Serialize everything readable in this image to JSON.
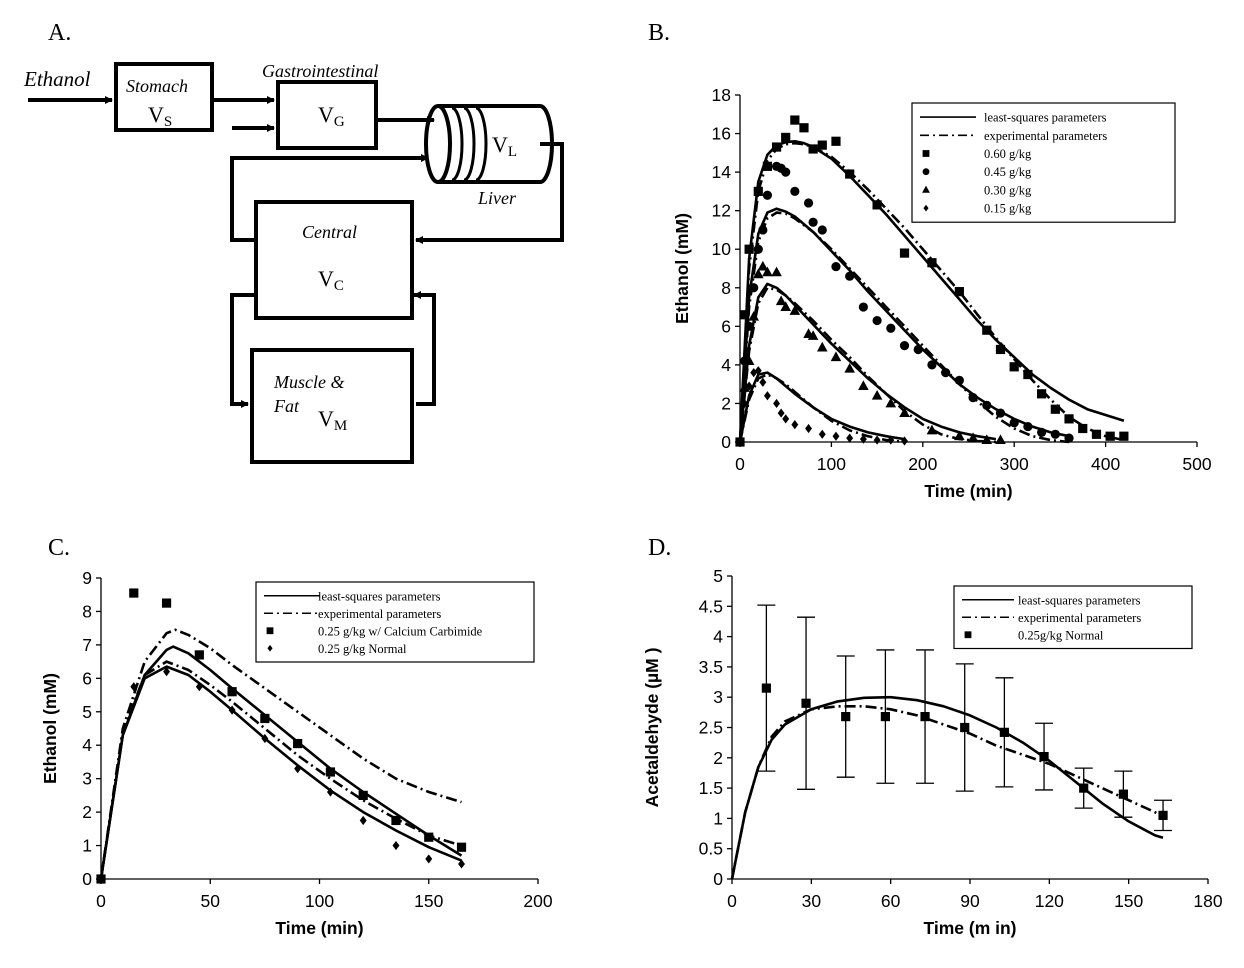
{
  "panel_labels": {
    "a": "A.",
    "b": "B.",
    "c": "C.",
    "d": "D."
  },
  "diagram": {
    "input": "Ethanol",
    "stomach": {
      "title": "Stomach",
      "vol": "V",
      "sub": "S"
    },
    "gastro": {
      "title": "Gastrointestinal",
      "vol": "V",
      "sub": "G"
    },
    "liver": {
      "title": "Liver",
      "vol": "V",
      "sub": "L"
    },
    "central": {
      "title": "Central",
      "vol": "V",
      "sub": "C"
    },
    "muscle": {
      "title_line1": "Muscle &",
      "title_line2": "Fat",
      "vol": "V",
      "sub": "M"
    }
  },
  "chart_data": [
    {
      "id": "B",
      "type": "line",
      "xlabel": "Time (min)",
      "ylabel": "Ethanol (mM)",
      "xlim": [
        0,
        500
      ],
      "ylim": [
        0,
        18
      ],
      "xticks": [
        0,
        100,
        200,
        300,
        400,
        500
      ],
      "yticks": [
        0,
        2,
        4,
        6,
        8,
        10,
        12,
        14,
        16,
        18
      ],
      "legend_position": "top-right",
      "legend": [
        {
          "label": "least-squares parameters",
          "kind": "solid"
        },
        {
          "label": "experimental parameters",
          "kind": "dashed"
        },
        {
          "label": "0.60 g/kg",
          "kind": "square"
        },
        {
          "label": "0.45 g/kg",
          "kind": "circle"
        },
        {
          "label": "0.30 g/kg",
          "kind": "triangle"
        },
        {
          "label": "0.15 g/kg",
          "kind": "diamond"
        }
      ],
      "lines": [
        {
          "style": "solid",
          "x": [
            0,
            10,
            20,
            30,
            40,
            50,
            60,
            70,
            80,
            90,
            100,
            120,
            140,
            160,
            180,
            200,
            220,
            240,
            260,
            280,
            300,
            320,
            340,
            360,
            380,
            400,
            420
          ],
          "y": [
            0,
            9.5,
            13.5,
            14.9,
            15.4,
            15.55,
            15.6,
            15.5,
            15.3,
            15.0,
            14.7,
            13.8,
            12.8,
            11.8,
            10.7,
            9.6,
            8.5,
            7.4,
            6.3,
            5.3,
            4.4,
            3.5,
            2.8,
            2.2,
            1.7,
            1.4,
            1.1
          ]
        },
        {
          "style": "dashed",
          "x": [
            0,
            10,
            20,
            30,
            40,
            50,
            60,
            70,
            80,
            90,
            100,
            120,
            140,
            160,
            180,
            200,
            220,
            240,
            260,
            280,
            300,
            320,
            340,
            360,
            380,
            400,
            420
          ],
          "y": [
            0,
            9.0,
            13.0,
            14.6,
            15.2,
            15.45,
            15.5,
            15.45,
            15.3,
            15.05,
            14.8,
            14.0,
            13.1,
            12.1,
            11.1,
            10.0,
            8.9,
            7.8,
            6.6,
            5.4,
            4.3,
            3.2,
            2.2,
            1.3,
            0.7,
            0.3,
            0.1
          ]
        },
        {
          "style": "solid",
          "x": [
            0,
            10,
            20,
            30,
            40,
            50,
            60,
            80,
            100,
            120,
            140,
            160,
            180,
            200,
            220,
            240,
            260,
            280,
            300,
            320,
            340,
            360
          ],
          "y": [
            0,
            7.5,
            10.8,
            11.9,
            12.1,
            11.95,
            11.7,
            10.9,
            9.9,
            8.9,
            7.8,
            6.8,
            5.8,
            4.8,
            3.9,
            3.0,
            2.3,
            1.7,
            1.2,
            0.8,
            0.5,
            0.3
          ]
        },
        {
          "style": "dashed",
          "x": [
            0,
            10,
            20,
            30,
            40,
            50,
            60,
            80,
            100,
            120,
            140,
            160,
            180,
            200,
            220,
            240,
            260,
            280,
            300,
            320,
            340,
            360
          ],
          "y": [
            0,
            7.0,
            10.4,
            11.6,
            11.9,
            11.85,
            11.6,
            10.9,
            10.0,
            9.0,
            8.0,
            7.0,
            6.0,
            5.0,
            4.0,
            3.0,
            2.1,
            1.3,
            0.7,
            0.3,
            0.1,
            0.0
          ]
        },
        {
          "style": "solid",
          "x": [
            0,
            10,
            20,
            30,
            40,
            50,
            60,
            80,
            100,
            120,
            140,
            160,
            180,
            200,
            220,
            240,
            260,
            280
          ],
          "y": [
            0,
            5.0,
            7.5,
            8.2,
            8.0,
            7.6,
            7.1,
            6.1,
            5.1,
            4.2,
            3.3,
            2.5,
            1.8,
            1.2,
            0.8,
            0.5,
            0.3,
            0.15
          ]
        },
        {
          "style": "dashed",
          "x": [
            0,
            10,
            20,
            30,
            40,
            50,
            60,
            80,
            100,
            120,
            140,
            160,
            180,
            200,
            220,
            240,
            260,
            280
          ],
          "y": [
            0,
            4.7,
            7.2,
            8.0,
            7.9,
            7.6,
            7.2,
            6.3,
            5.3,
            4.4,
            3.4,
            2.5,
            1.6,
            0.9,
            0.4,
            0.15,
            0.05,
            0.0
          ]
        },
        {
          "style": "solid",
          "x": [
            0,
            10,
            20,
            30,
            40,
            50,
            60,
            80,
            100,
            120,
            140,
            160,
            180
          ],
          "y": [
            0,
            2.4,
            3.5,
            3.6,
            3.3,
            2.9,
            2.5,
            1.8,
            1.2,
            0.8,
            0.5,
            0.3,
            0.15
          ]
        },
        {
          "style": "dashed",
          "x": [
            0,
            10,
            20,
            30,
            40,
            50,
            60,
            80,
            100,
            120,
            140,
            160,
            180
          ],
          "y": [
            0,
            2.2,
            3.3,
            3.5,
            3.3,
            3.0,
            2.6,
            1.8,
            1.1,
            0.6,
            0.3,
            0.1,
            0.0
          ]
        }
      ],
      "points": [
        {
          "marker": "square",
          "x": [
            0,
            5,
            10,
            20,
            30,
            40,
            50,
            60,
            70,
            80,
            90,
            105,
            120,
            150,
            180,
            210,
            240,
            270,
            285,
            300,
            315,
            330,
            345,
            360,
            375,
            390,
            405,
            420
          ],
          "y": [
            0,
            6.6,
            10,
            13,
            14.3,
            15.3,
            15.8,
            16.7,
            16.3,
            15.2,
            15.4,
            15.6,
            13.9,
            12.3,
            9.8,
            9.3,
            7.8,
            5.8,
            4.8,
            3.9,
            3.5,
            2.5,
            1.7,
            1.2,
            0.7,
            0.4,
            0.3,
            0.3
          ]
        },
        {
          "marker": "circle",
          "x": [
            5,
            10,
            15,
            20,
            25,
            30,
            40,
            45,
            50,
            60,
            75,
            80,
            90,
            105,
            120,
            135,
            150,
            165,
            180,
            195,
            210,
            225,
            240,
            255,
            270,
            285,
            300,
            315,
            330,
            345,
            360
          ],
          "y": [
            4.2,
            6.0,
            8.0,
            10.0,
            11.0,
            12.8,
            14.3,
            14.2,
            14.0,
            13.0,
            12.4,
            11.4,
            11.0,
            9.1,
            8.6,
            7.0,
            6.3,
            5.9,
            5.0,
            4.8,
            4.0,
            3.6,
            3.2,
            2.3,
            1.9,
            1.5,
            1.0,
            0.8,
            0.5,
            0.4,
            0.2
          ]
        },
        {
          "marker": "triangle",
          "x": [
            5,
            10,
            15,
            20,
            25,
            30,
            40,
            45,
            50,
            60,
            75,
            80,
            90,
            105,
            120,
            135,
            150,
            165,
            180,
            210,
            240,
            255,
            270,
            285
          ],
          "y": [
            2.8,
            4.2,
            6.5,
            8.7,
            9.1,
            8.8,
            8.8,
            7.3,
            7.0,
            6.8,
            5.6,
            5.5,
            4.9,
            4.4,
            3.8,
            2.9,
            2.4,
            2.0,
            1.5,
            0.6,
            0.3,
            0.2,
            0.1,
            0.1
          ]
        },
        {
          "marker": "diamond",
          "x": [
            5,
            10,
            15,
            20,
            25,
            30,
            40,
            45,
            50,
            60,
            75,
            90,
            105,
            120,
            135,
            150,
            165,
            180
          ],
          "y": [
            2.0,
            2.9,
            3.6,
            3.7,
            3.1,
            2.4,
            2.0,
            1.5,
            1.2,
            0.9,
            0.7,
            0.4,
            0.3,
            0.2,
            0.15,
            0.1,
            0.1,
            0.05
          ]
        }
      ]
    },
    {
      "id": "C",
      "type": "line",
      "xlabel": "Time (min)",
      "ylabel": "Ethanol (mM)",
      "xlim": [
        0,
        200
      ],
      "ylim": [
        0,
        9
      ],
      "xticks": [
        0,
        50,
        100,
        150,
        200
      ],
      "yticks": [
        0,
        1,
        2,
        3,
        4,
        5,
        6,
        7,
        8,
        9
      ],
      "legend_position": "top-right",
      "legend": [
        {
          "label": "least-squares parameters",
          "kind": "solid"
        },
        {
          "label": "experimental parameters",
          "kind": "dashed"
        },
        {
          "label": "0.25 g/kg w/ Calcium Carbimide",
          "kind": "square"
        },
        {
          "label": "0.25 g/kg Normal",
          "kind": "diamond"
        }
      ],
      "lines": [
        {
          "style": "solid",
          "x": [
            0,
            10,
            20,
            30,
            33,
            40,
            50,
            60,
            75,
            90,
            105,
            120,
            135,
            150,
            165
          ],
          "y": [
            0,
            4.3,
            6.1,
            6.85,
            6.95,
            6.75,
            6.25,
            5.7,
            4.9,
            4.1,
            3.3,
            2.6,
            1.95,
            1.3,
            0.7
          ]
        },
        {
          "style": "dashed",
          "x": [
            0,
            10,
            20,
            30,
            34,
            40,
            50,
            60,
            75,
            90,
            105,
            120,
            135,
            150,
            165
          ],
          "y": [
            0,
            4.5,
            6.5,
            7.35,
            7.45,
            7.3,
            6.9,
            6.4,
            5.7,
            5.0,
            4.3,
            3.6,
            3.0,
            2.6,
            2.3
          ]
        },
        {
          "style": "solid",
          "x": [
            0,
            10,
            20,
            30,
            40,
            50,
            60,
            75,
            90,
            105,
            120,
            135,
            150,
            165
          ],
          "y": [
            0,
            4.3,
            6.0,
            6.35,
            6.1,
            5.6,
            5.05,
            4.2,
            3.4,
            2.65,
            2.0,
            1.45,
            0.95,
            0.55
          ]
        },
        {
          "style": "dashed",
          "x": [
            0,
            10,
            20,
            30,
            40,
            50,
            60,
            75,
            90,
            105,
            120,
            135,
            150,
            165
          ],
          "y": [
            0,
            4.4,
            6.1,
            6.5,
            6.25,
            5.8,
            5.3,
            4.5,
            3.7,
            3.0,
            2.35,
            1.8,
            1.3,
            1.0
          ]
        }
      ],
      "points": [
        {
          "marker": "square",
          "x": [
            0,
            15,
            30,
            45,
            60,
            75,
            90,
            105,
            120,
            135,
            150,
            165
          ],
          "y": [
            0,
            8.55,
            8.25,
            6.7,
            5.6,
            4.8,
            4.05,
            3.2,
            2.5,
            1.75,
            1.25,
            0.95
          ]
        },
        {
          "marker": "diamond",
          "x": [
            0,
            15,
            30,
            45,
            60,
            75,
            90,
            105,
            120,
            135,
            150,
            165
          ],
          "y": [
            0,
            5.75,
            6.2,
            5.75,
            5.05,
            4.2,
            3.3,
            2.6,
            1.75,
            1.0,
            0.6,
            0.45
          ]
        }
      ]
    },
    {
      "id": "D",
      "type": "line",
      "xlabel": "Time (m in)",
      "ylabel": "Acetaldehyde (µM )",
      "xlim": [
        0,
        180
      ],
      "ylim": [
        0,
        5
      ],
      "xticks": [
        0,
        30,
        60,
        90,
        120,
        150,
        180
      ],
      "yticks": [
        0,
        0.5,
        1,
        1.5,
        2,
        2.5,
        3,
        3.5,
        4,
        4.5,
        5
      ],
      "legend_position": "top-right",
      "legend": [
        {
          "label": "least-squares parameters",
          "kind": "solid"
        },
        {
          "label": "experimental parameters",
          "kind": "dashed"
        },
        {
          "label": "0.25g/kg Normal",
          "kind": "square"
        }
      ],
      "lines": [
        {
          "style": "solid",
          "x": [
            0,
            5,
            10,
            15,
            20,
            30,
            40,
            50,
            60,
            70,
            80,
            90,
            100,
            110,
            120,
            130,
            140,
            150,
            160,
            163
          ],
          "y": [
            0,
            1.1,
            1.85,
            2.3,
            2.55,
            2.8,
            2.93,
            2.99,
            3.0,
            2.95,
            2.85,
            2.7,
            2.5,
            2.25,
            1.95,
            1.6,
            1.25,
            0.95,
            0.72,
            0.68
          ]
        },
        {
          "style": "dashed",
          "x": [
            0,
            5,
            10,
            15,
            20,
            30,
            40,
            50,
            60,
            70,
            80,
            90,
            100,
            110,
            120,
            130,
            140,
            150,
            160,
            163
          ],
          "y": [
            0,
            1.1,
            1.85,
            2.35,
            2.6,
            2.8,
            2.85,
            2.85,
            2.8,
            2.7,
            2.55,
            2.4,
            2.2,
            2.05,
            1.9,
            1.7,
            1.5,
            1.3,
            1.1,
            1.02
          ]
        }
      ],
      "points": [
        {
          "marker": "square",
          "x": [
            13,
            28,
            43,
            58,
            73,
            88,
            103,
            118,
            133,
            148,
            163
          ],
          "y": [
            3.15,
            2.9,
            2.68,
            2.68,
            2.68,
            2.5,
            2.42,
            2.02,
            1.5,
            1.4,
            1.05
          ],
          "yerr": [
            1.37,
            1.42,
            1.0,
            1.1,
            1.1,
            1.05,
            0.9,
            0.55,
            0.33,
            0.38,
            0.25
          ]
        }
      ]
    }
  ]
}
